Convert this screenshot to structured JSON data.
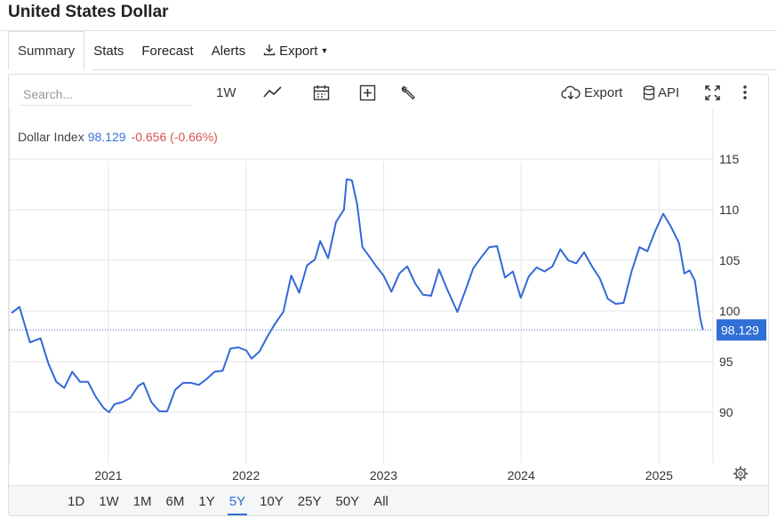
{
  "header": {
    "title": "United States Dollar"
  },
  "tabs": [
    {
      "label": "Summary",
      "active": true
    },
    {
      "label": "Stats"
    },
    {
      "label": "Forecast"
    },
    {
      "label": "Alerts"
    },
    {
      "label": "Export"
    }
  ],
  "toolbar": {
    "search_placeholder": "Search...",
    "interval_label": "1W",
    "export_label": "Export",
    "api_label": "API",
    "icons": [
      "line-chart-icon",
      "calendar-icon",
      "plus-box-icon",
      "wrench-icon",
      "cloud-download-icon",
      "database-icon",
      "fullscreen-icon",
      "more-vert-icon"
    ]
  },
  "legend": {
    "name": "Dollar Index",
    "value": "98.129",
    "change": "-0.656 (-0.66%)"
  },
  "price_tag": "98.129",
  "colors": {
    "line": "#3468d8",
    "accent": "#2f6fd6",
    "negative": "#d9534f",
    "tag_bg": "#2f6fd6"
  },
  "range_buttons": [
    "1D",
    "1W",
    "1M",
    "6M",
    "1Y",
    "5Y",
    "10Y",
    "25Y",
    "50Y",
    "All"
  ],
  "active_range": "5Y",
  "chart_data": {
    "type": "line",
    "series": [
      {
        "name": "Dollar Index",
        "points": [
          [
            "2020-04-19",
            99.8
          ],
          [
            "2020-05-10",
            100.4
          ],
          [
            "2020-06-07",
            96.9
          ],
          [
            "2020-07-05",
            97.3
          ],
          [
            "2020-07-26",
            94.8
          ],
          [
            "2020-08-16",
            93.0
          ],
          [
            "2020-09-06",
            92.4
          ],
          [
            "2020-09-27",
            94.0
          ],
          [
            "2020-10-18",
            93.0
          ],
          [
            "2020-11-08",
            93.0
          ],
          [
            "2020-11-29",
            91.5
          ],
          [
            "2020-12-20",
            90.4
          ],
          [
            "2021-01-03",
            90.0
          ],
          [
            "2021-01-17",
            90.8
          ],
          [
            "2021-02-07",
            91.0
          ],
          [
            "2021-02-28",
            91.4
          ],
          [
            "2021-03-21",
            92.6
          ],
          [
            "2021-04-04",
            92.9
          ],
          [
            "2021-04-25",
            91.0
          ],
          [
            "2021-05-16",
            90.1
          ],
          [
            "2021-06-06",
            90.1
          ],
          [
            "2021-06-27",
            92.2
          ],
          [
            "2021-07-18",
            92.9
          ],
          [
            "2021-08-08",
            92.9
          ],
          [
            "2021-08-29",
            92.7
          ],
          [
            "2021-09-19",
            93.3
          ],
          [
            "2021-10-10",
            94.0
          ],
          [
            "2021-10-31",
            94.1
          ],
          [
            "2021-11-21",
            96.3
          ],
          [
            "2021-12-12",
            96.4
          ],
          [
            "2022-01-02",
            96.1
          ],
          [
            "2022-01-16",
            95.3
          ],
          [
            "2022-02-06",
            96.0
          ],
          [
            "2022-02-27",
            97.5
          ],
          [
            "2022-03-20",
            98.8
          ],
          [
            "2022-04-10",
            99.9
          ],
          [
            "2022-05-01",
            103.5
          ],
          [
            "2022-05-22",
            101.8
          ],
          [
            "2022-06-12",
            104.5
          ],
          [
            "2022-07-03",
            105.1
          ],
          [
            "2022-07-17",
            106.9
          ],
          [
            "2022-08-07",
            105.2
          ],
          [
            "2022-08-28",
            108.8
          ],
          [
            "2022-09-18",
            110.0
          ],
          [
            "2022-09-25",
            113.0
          ],
          [
            "2022-10-09",
            112.9
          ],
          [
            "2022-10-23",
            110.5
          ],
          [
            "2022-11-06",
            106.3
          ],
          [
            "2022-11-20",
            105.6
          ],
          [
            "2022-12-11",
            104.5
          ],
          [
            "2023-01-01",
            103.5
          ],
          [
            "2023-01-22",
            101.9
          ],
          [
            "2023-02-12",
            103.7
          ],
          [
            "2023-03-05",
            104.4
          ],
          [
            "2023-03-26",
            102.7
          ],
          [
            "2023-04-16",
            101.6
          ],
          [
            "2023-05-07",
            101.5
          ],
          [
            "2023-05-28",
            104.1
          ],
          [
            "2023-06-18",
            102.2
          ],
          [
            "2023-07-16",
            99.9
          ],
          [
            "2023-08-06",
            102.0
          ],
          [
            "2023-08-27",
            104.2
          ],
          [
            "2023-09-17",
            105.3
          ],
          [
            "2023-10-08",
            106.3
          ],
          [
            "2023-10-29",
            106.4
          ],
          [
            "2023-11-19",
            103.3
          ],
          [
            "2023-12-10",
            103.9
          ],
          [
            "2023-12-31",
            101.3
          ],
          [
            "2024-01-21",
            103.4
          ],
          [
            "2024-02-11",
            104.3
          ],
          [
            "2024-03-03",
            103.9
          ],
          [
            "2024-03-24",
            104.4
          ],
          [
            "2024-04-14",
            106.1
          ],
          [
            "2024-05-05",
            105.0
          ],
          [
            "2024-05-26",
            104.7
          ],
          [
            "2024-06-16",
            105.8
          ],
          [
            "2024-07-07",
            104.4
          ],
          [
            "2024-07-28",
            103.2
          ],
          [
            "2024-08-18",
            101.2
          ],
          [
            "2024-09-08",
            100.7
          ],
          [
            "2024-09-29",
            100.8
          ],
          [
            "2024-10-20",
            103.9
          ],
          [
            "2024-11-10",
            106.3
          ],
          [
            "2024-12-01",
            105.9
          ],
          [
            "2024-12-22",
            107.9
          ],
          [
            "2025-01-12",
            109.6
          ],
          [
            "2025-02-02",
            108.3
          ],
          [
            "2025-02-23",
            106.7
          ],
          [
            "2025-03-09",
            103.7
          ],
          [
            "2025-03-23",
            104.0
          ],
          [
            "2025-04-06",
            103.0
          ],
          [
            "2025-04-20",
            99.3
          ],
          [
            "2025-04-27",
            98.129
          ]
        ]
      }
    ],
    "x_ticks": [
      {
        "date": "2021-01-01",
        "label": "2021"
      },
      {
        "date": "2022-01-01",
        "label": "2022"
      },
      {
        "date": "2023-01-01",
        "label": "2023"
      },
      {
        "date": "2024-01-01",
        "label": "2024"
      },
      {
        "date": "2025-01-01",
        "label": "2025"
      }
    ],
    "y_ticks": [
      90,
      95,
      100,
      105,
      110,
      115
    ],
    "xlim": [
      "2020-04-12",
      "2025-05-24"
    ],
    "ylim": [
      85,
      120
    ],
    "last_value": 98.129,
    "reference_line": 98.129,
    "grid": true,
    "y_axis_side": "right"
  }
}
